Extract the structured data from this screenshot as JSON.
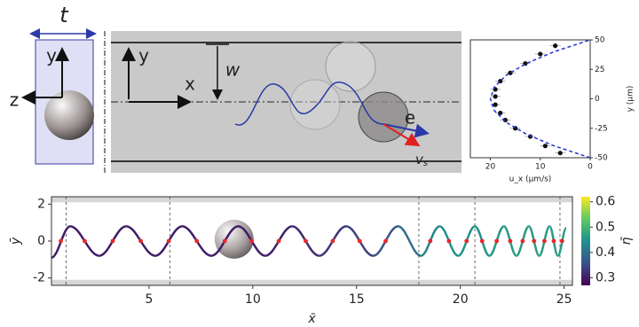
{
  "figure_labels": {
    "t": "t",
    "sketch_y": "y",
    "sketch_z": "z",
    "micro_y": "y",
    "micro_x": "x",
    "w": "w",
    "e": "e",
    "v": "v",
    "v_sub": "s"
  },
  "chart_data": [
    {
      "type": "scatter",
      "xlabel": "u_x (μm/s)",
      "ylabel": "y (μm)",
      "xlim": [
        24,
        0
      ],
      "ylim": [
        -50,
        50
      ],
      "xticks": [
        20,
        10,
        0
      ],
      "yticks": [
        -50,
        -25,
        0,
        25,
        50
      ],
      "series": [
        {
          "x": [
            7,
            10,
            13,
            16,
            18,
            19,
            19,
            19,
            18,
            17,
            15,
            12,
            9,
            6
          ],
          "values": [
            45,
            38,
            30,
            22,
            15,
            8,
            2,
            -5,
            -12,
            -18,
            -25,
            -32,
            -40,
            -46
          ],
          "color": "#111111",
          "style": "markers"
        },
        {
          "x": [
            0,
            7.2,
            12.8,
            16.8,
            19.2,
            20,
            19.2,
            16.8,
            12.8,
            7.2,
            0
          ],
          "values": [
            -50,
            -40,
            -30,
            -20,
            -10,
            0,
            10,
            20,
            30,
            40,
            50
          ],
          "color": "#2233cc",
          "style": "dashed"
        }
      ]
    },
    {
      "type": "line",
      "xlabel": "x̄",
      "ylabel": "ȳ",
      "xlim": [
        0.3,
        25.4
      ],
      "ylim": [
        -2.4,
        2.4
      ],
      "xticks": [
        5,
        10,
        15,
        20,
        25
      ],
      "yticks": [
        -2,
        0,
        2
      ],
      "walls": [
        -2.1,
        2.1
      ],
      "vlines": [
        1,
        6,
        18,
        20.7,
        24.8
      ],
      "x": [
        0.3,
        1.2,
        2.6,
        3.9,
        5.3,
        6.6,
        8.0,
        9.3,
        10.6,
        11.9,
        13.2,
        14.5,
        15.8,
        17.0,
        18.1,
        19.0,
        19.9,
        20.7,
        21.4,
        22.1,
        22.7,
        23.3,
        23.8,
        24.3,
        24.7,
        25.1
      ],
      "series": [
        {
          "values": [
            -0.9,
            0.8,
            -0.8,
            0.8,
            -0.8,
            0.8,
            -0.8,
            0.8,
            -0.8,
            0.8,
            -0.8,
            0.8,
            -0.8,
            0.8,
            -0.8,
            0.8,
            -0.8,
            0.8,
            -0.8,
            0.8,
            -0.8,
            0.8,
            -0.8,
            0.8,
            -0.8,
            0.7
          ],
          "eta": [
            0.3,
            0.3,
            0.3,
            0.3,
            0.3,
            0.3,
            0.3,
            0.3,
            0.3,
            0.31,
            0.32,
            0.33,
            0.35,
            0.37,
            0.42,
            0.44,
            0.45,
            0.45,
            0.45,
            0.46,
            0.46,
            0.46,
            0.46,
            0.46,
            0.46,
            0.46
          ]
        }
      ],
      "markers": {
        "x": [
          0.75,
          1.9,
          3.25,
          4.6,
          5.95,
          7.3,
          8.65,
          9.95,
          11.25,
          12.55,
          13.85,
          15.15,
          16.4,
          18.55,
          19.45,
          20.3,
          21.05,
          21.75,
          22.4,
          23.0,
          23.55,
          24.05,
          24.5,
          24.9
        ],
        "values": [
          0,
          0,
          0,
          0,
          0,
          0,
          0,
          0,
          0,
          0,
          0,
          0,
          0,
          0,
          0,
          0,
          0,
          0,
          0,
          0,
          0,
          0,
          0,
          0
        ],
        "color": "#e8282d"
      },
      "colorbar": {
        "label": "η̄",
        "lim": [
          0.27,
          0.62
        ],
        "ticks": [
          0.3,
          0.4,
          0.5,
          0.6
        ],
        "colors": [
          "#440154",
          "#3b528b",
          "#21918c",
          "#5ec962",
          "#fde725"
        ]
      }
    }
  ]
}
